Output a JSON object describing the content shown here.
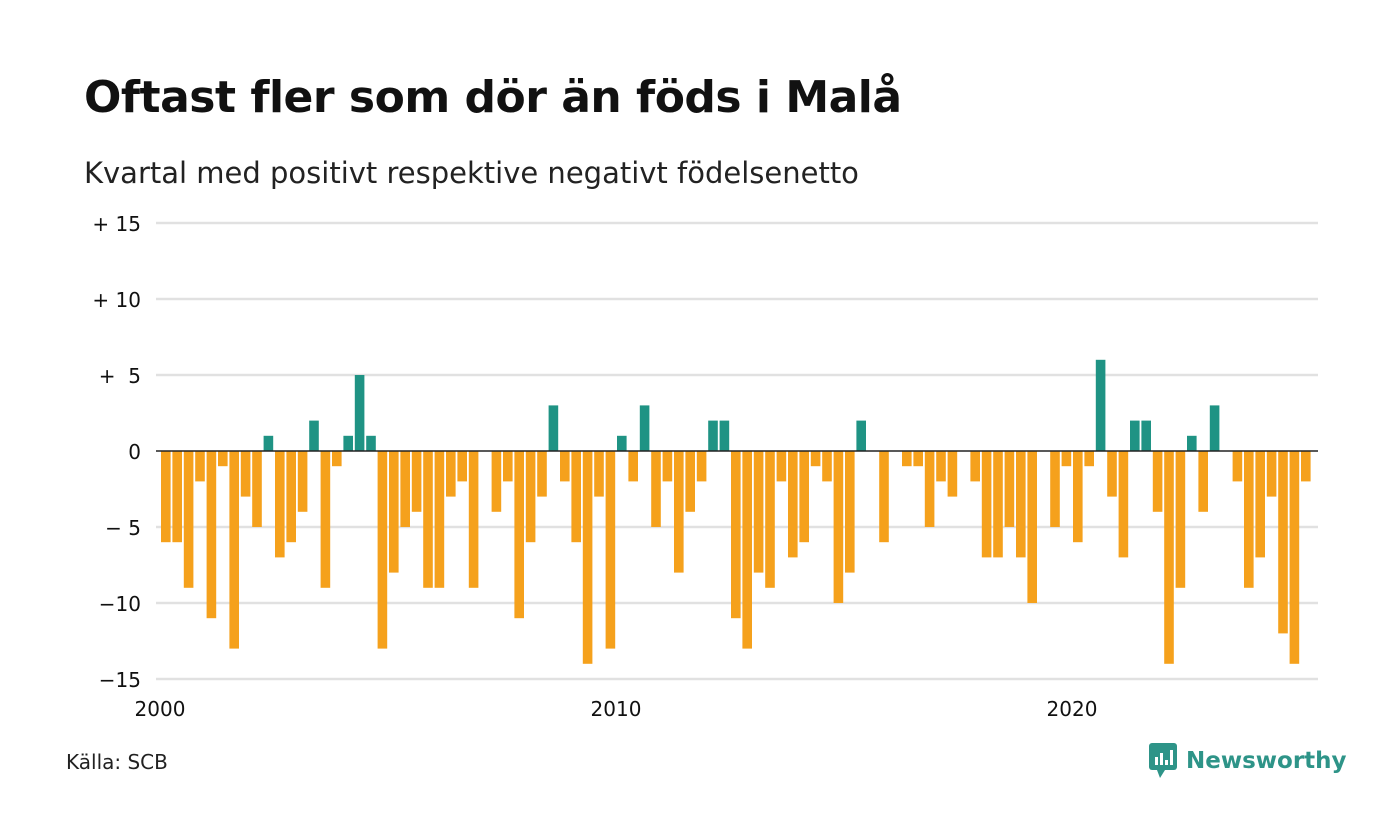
{
  "header": {
    "title": "Oftast fler som dör än föds i Malå",
    "subtitle": "Kvartal med positivt respektive negativt födelsenetto"
  },
  "footer": {
    "source": "Källa: SCB",
    "brand_name": "Newsworthy",
    "brand_icon": "newsworthy-logo-icon"
  },
  "colors": {
    "positive": "#1f9384",
    "negative": "#f5a11c",
    "grid": "#e1e1e1",
    "zero_line": "#222222"
  },
  "chart_data": {
    "type": "bar",
    "title": "Oftast fler som dör än föds i Malå",
    "subtitle": "Kvartal med positivt respektive negativt födelsenetto",
    "xlabel": "",
    "ylabel": "",
    "ylim": [
      -15,
      15
    ],
    "y_ticks": [
      {
        "value": 15,
        "label": "+ 15"
      },
      {
        "value": 10,
        "label": "+ 10"
      },
      {
        "value": 5,
        "label": "+  5"
      },
      {
        "value": 0,
        "label": "0"
      },
      {
        "value": -5,
        "label": "− 5"
      },
      {
        "value": -10,
        "label": "−10"
      },
      {
        "value": -15,
        "label": "−15"
      }
    ],
    "x_ticks": [
      {
        "value": 2000,
        "label": "2000"
      },
      {
        "value": 2010,
        "label": "2010"
      },
      {
        "value": 2020,
        "label": "2020"
      }
    ],
    "x_start": 2000,
    "period": "quarter",
    "grid": true,
    "values": [
      -6,
      -6,
      -9,
      -2,
      -11,
      -1,
      -13,
      -3,
      -5,
      1,
      -7,
      -6,
      -4,
      2,
      -9,
      -1,
      1,
      5,
      1,
      -13,
      -8,
      -5,
      -4,
      -9,
      -9,
      -3,
      -2,
      -9,
      0,
      -4,
      -2,
      -11,
      -6,
      -3,
      3,
      -2,
      -6,
      -14,
      -3,
      -13,
      1,
      -2,
      3,
      -5,
      -2,
      -8,
      -4,
      -2,
      2,
      2,
      -11,
      -13,
      -8,
      -9,
      -2,
      -7,
      -6,
      -1,
      -2,
      -10,
      -8,
      2,
      0,
      -6,
      0,
      -1,
      -1,
      -5,
      -2,
      -3,
      0,
      -2,
      -7,
      -7,
      -5,
      -7,
      -10,
      0,
      -5,
      -1,
      -6,
      -1,
      6,
      -3,
      -7,
      2,
      2,
      -4,
      -14,
      -9,
      1,
      -4,
      3,
      0,
      -2,
      -9,
      -7,
      -3,
      -12,
      -14,
      -2
    ]
  }
}
